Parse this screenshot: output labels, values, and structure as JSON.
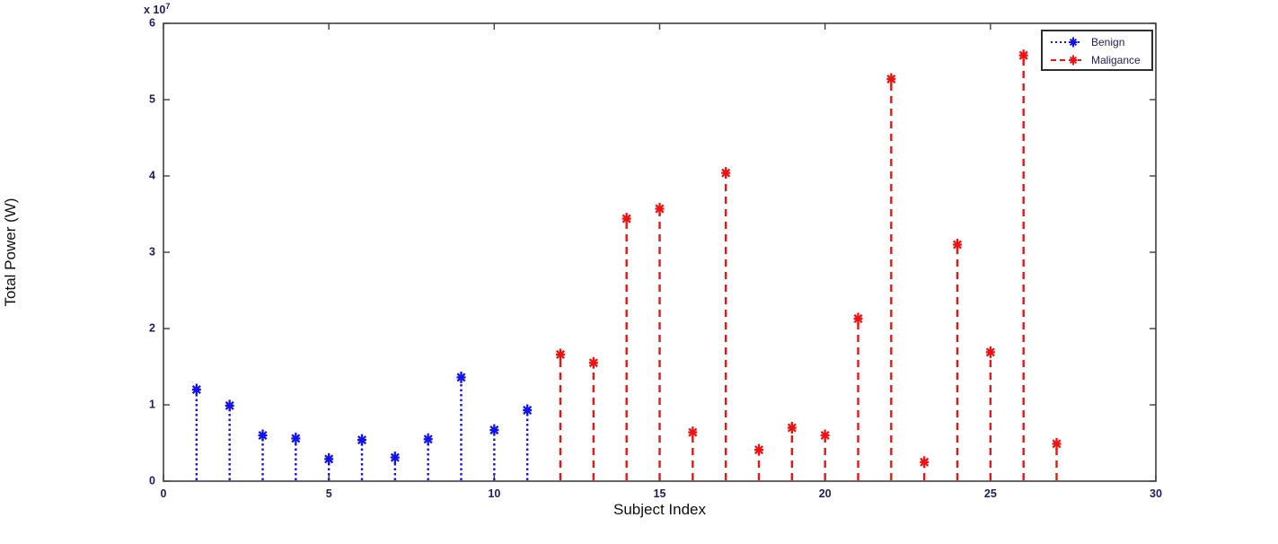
{
  "figure": {
    "background": "#ffffff",
    "axis_color": "#3f3f3f",
    "tick_label_color": "#1e1e5a",
    "label_color": "#0d0d0d"
  },
  "chart_data": {
    "type": "stem",
    "title": "",
    "xlabel": "Subject Index",
    "ylabel": "Total Power (W)",
    "y_scale_base": "x 10",
    "y_scale_exponent": "7",
    "xlim": [
      0,
      30
    ],
    "ylim": [
      0,
      6
    ],
    "y_units_note": "y tick values are in units of 10^7 W",
    "x_ticks": [
      0,
      5,
      10,
      15,
      20,
      25,
      30
    ],
    "y_ticks": [
      0,
      1,
      2,
      3,
      4,
      5,
      6
    ],
    "grid": false,
    "legend_position": "top-right",
    "series": [
      {
        "name": "Benign",
        "color": "#1212ef",
        "line_style": "dotted",
        "marker": "asterisk",
        "x": [
          1,
          2,
          3,
          4,
          5,
          6,
          7,
          8,
          9,
          10,
          11
        ],
        "values": [
          1.2,
          0.99,
          0.6,
          0.56,
          0.29,
          0.54,
          0.31,
          0.55,
          1.36,
          0.67,
          0.93
        ]
      },
      {
        "name": "Maligance",
        "color": "#f01111",
        "line_style": "dashed",
        "marker": "asterisk",
        "x": [
          12,
          13,
          14,
          15,
          16,
          17,
          18,
          19,
          20,
          21,
          22,
          23,
          24,
          25,
          26,
          27
        ],
        "values": [
          1.66,
          1.55,
          3.44,
          3.57,
          0.64,
          4.04,
          0.41,
          0.7,
          0.6,
          2.13,
          5.27,
          0.25,
          3.1,
          1.69,
          5.58,
          0.49
        ]
      }
    ]
  }
}
